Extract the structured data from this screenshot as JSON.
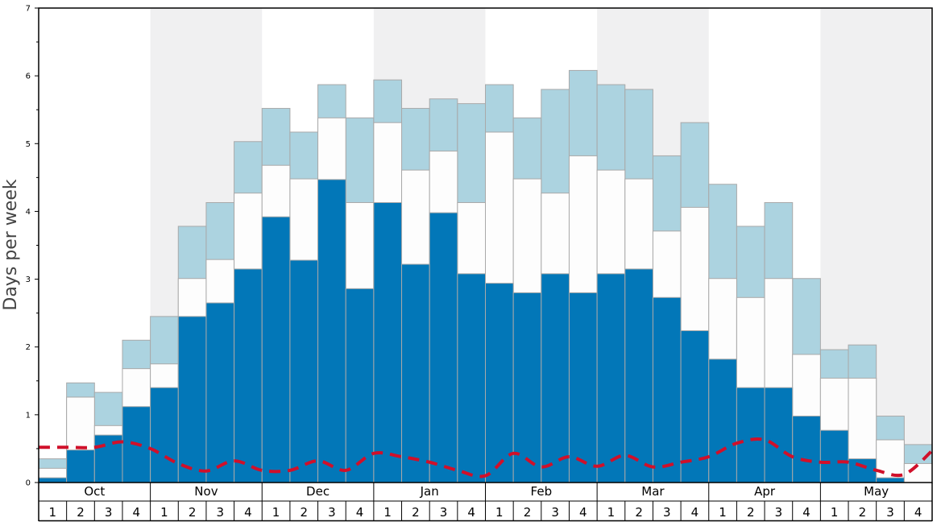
{
  "chart_data": {
    "type": "bar",
    "ylabel": "Days per week",
    "ylim": [
      0,
      7
    ],
    "yticks": [
      "0",
      "1",
      "2",
      "3",
      "4",
      "5",
      "6",
      "7"
    ],
    "months": [
      "Oct",
      "Nov",
      "Dec",
      "Jan",
      "Feb",
      "Mar",
      "Apr",
      "May"
    ],
    "weeks": [
      "1",
      "2",
      "3",
      "4"
    ],
    "colors": {
      "dark": "#0277b8",
      "middle": "#fdfdfd",
      "light": "#acd3e0",
      "line": "#d0102a",
      "band": "#f0f0f1"
    },
    "series": [
      {
        "values": [
          0.07,
          0.48,
          0.7,
          1.12,
          1.4,
          2.45,
          2.65,
          3.15,
          3.92,
          3.28,
          4.47,
          2.86,
          4.13,
          3.22,
          3.98,
          3.08,
          2.94,
          2.8,
          3.08,
          2.8,
          3.08,
          3.15,
          2.73,
          2.24,
          1.82,
          1.4,
          1.4,
          0.98,
          0.77,
          0.35,
          0.07,
          0.0
        ]
      },
      {
        "values": [
          0.21,
          1.26,
          0.84,
          1.68,
          1.75,
          3.01,
          3.29,
          4.27,
          4.68,
          4.48,
          5.38,
          4.13,
          5.31,
          4.61,
          4.89,
          4.13,
          5.17,
          4.48,
          4.27,
          4.82,
          4.61,
          4.48,
          3.71,
          4.06,
          3.01,
          2.73,
          3.01,
          1.89,
          1.54,
          1.54,
          0.63,
          0.28
        ]
      },
      {
        "values": [
          0.35,
          1.47,
          1.33,
          2.1,
          2.45,
          3.78,
          4.13,
          5.03,
          5.52,
          5.17,
          5.87,
          5.38,
          5.94,
          5.52,
          5.66,
          5.59,
          5.87,
          5.38,
          5.8,
          6.08,
          5.87,
          5.8,
          4.82,
          5.31,
          4.4,
          3.78,
          4.13,
          3.01,
          1.96,
          2.03,
          0.98,
          0.56
        ]
      }
    ],
    "line": [
      0.52,
      0.52,
      0.52,
      0.6,
      0.5,
      0.28,
      0.17,
      0.32,
      0.18,
      0.18,
      0.32,
      0.18,
      0.43,
      0.38,
      0.3,
      0.18,
      0.1,
      0.43,
      0.23,
      0.38,
      0.24,
      0.4,
      0.23,
      0.3,
      0.38,
      0.58,
      0.63,
      0.38,
      0.3,
      0.3,
      0.18,
      0.12,
      0.47
    ]
  }
}
